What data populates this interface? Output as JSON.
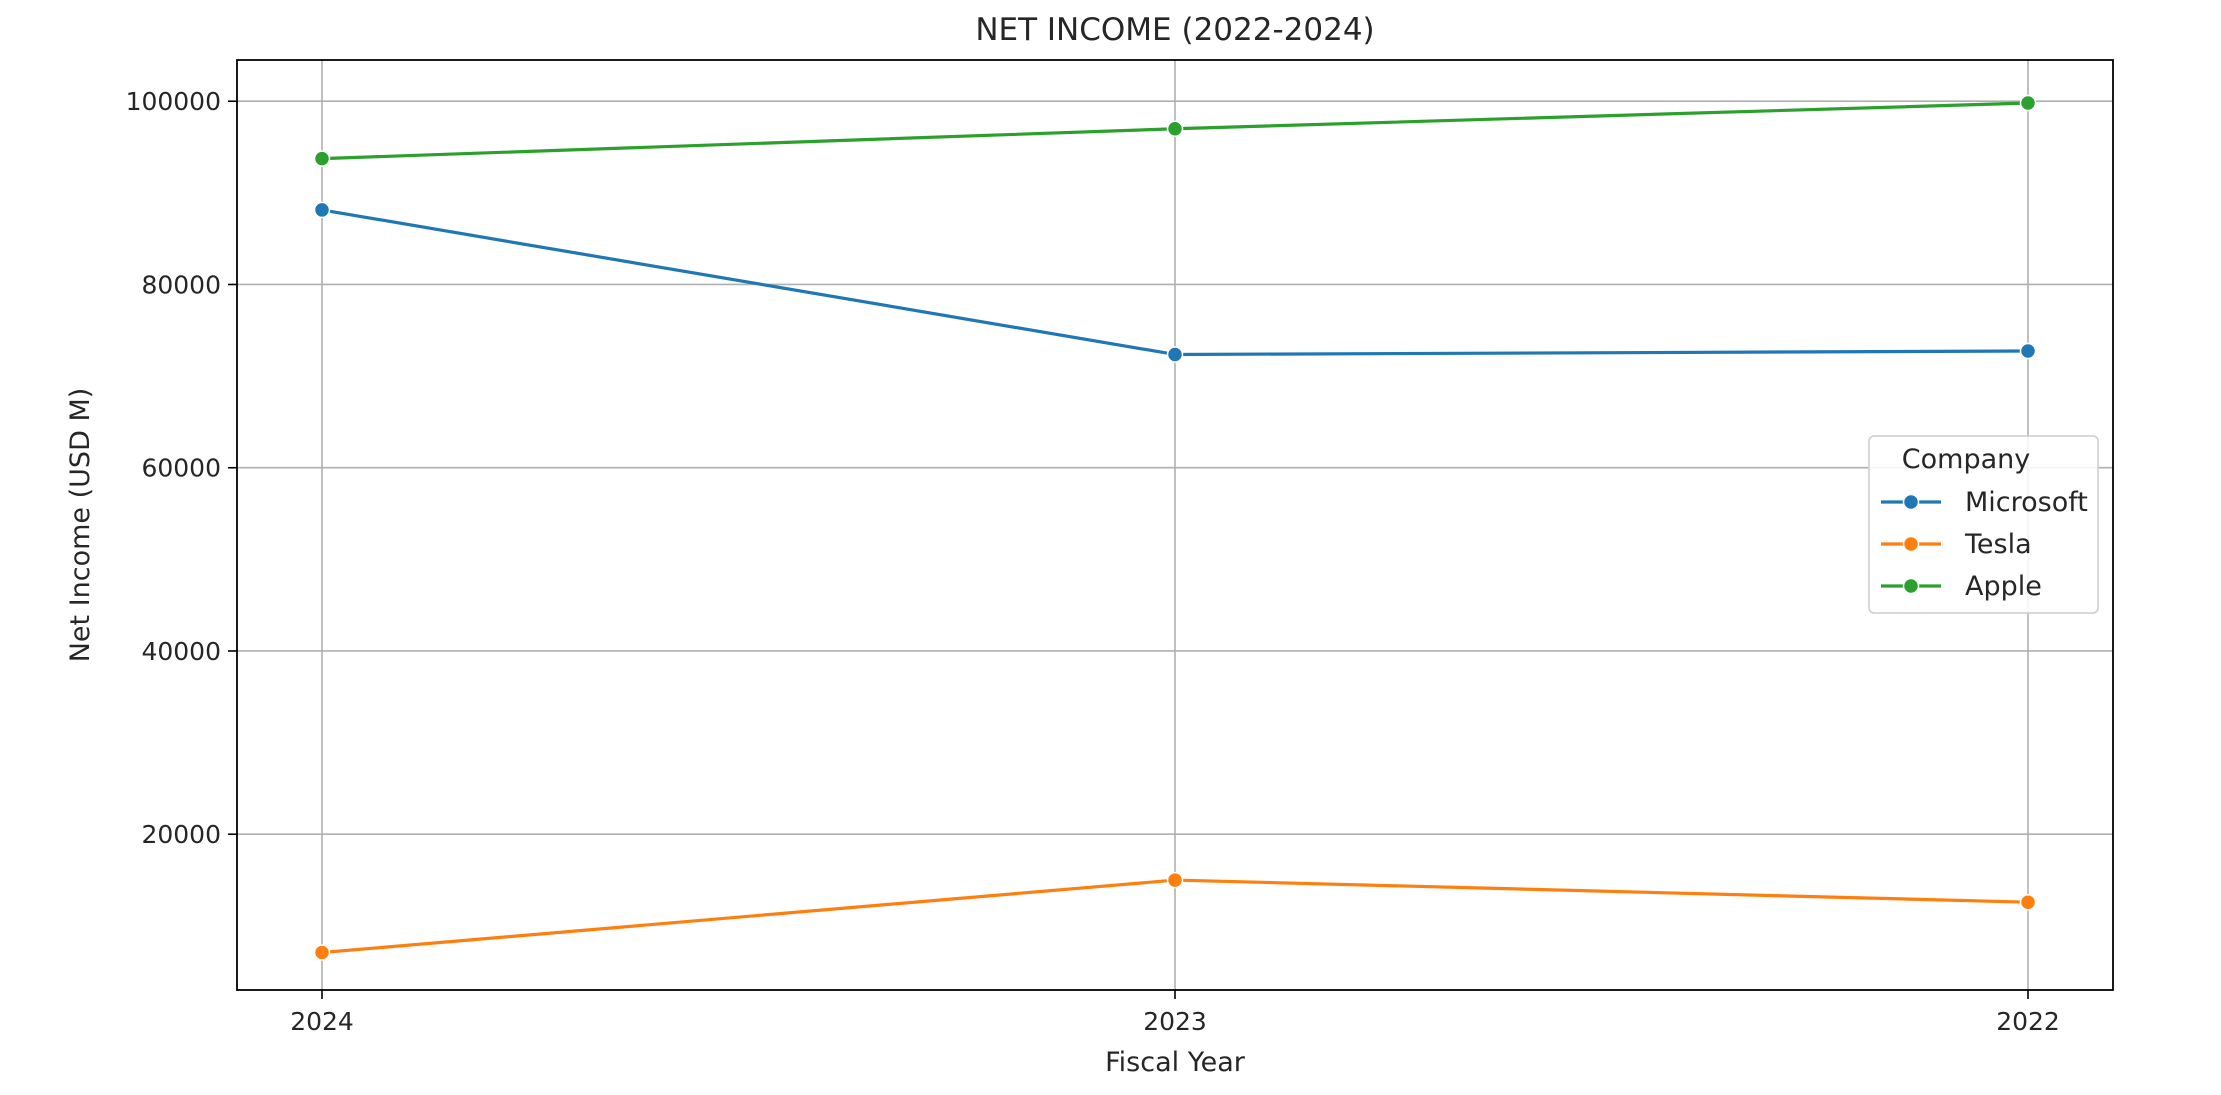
{
  "chart_data": {
    "type": "line",
    "title": "NET INCOME (2022-2024)",
    "xlabel": "Fiscal Year",
    "ylabel": "Net Income (USD M)",
    "categories": [
      "2024",
      "2023",
      "2022"
    ],
    "yticks": [
      20000,
      40000,
      60000,
      80000,
      100000
    ],
    "ylim": [
      3000,
      104500
    ],
    "grid": true,
    "legend": {
      "title": "Company",
      "placement": "center-right"
    },
    "series": [
      {
        "name": "Microsoft",
        "color": "#1f77b4",
        "values": [
          88136,
          72361,
          72738
        ]
      },
      {
        "name": "Tesla",
        "color": "#ff7f0e",
        "values": [
          7091,
          14997,
          12583
        ]
      },
      {
        "name": "Apple",
        "color": "#2ca02c",
        "values": [
          93736,
          96995,
          99803
        ]
      }
    ]
  }
}
